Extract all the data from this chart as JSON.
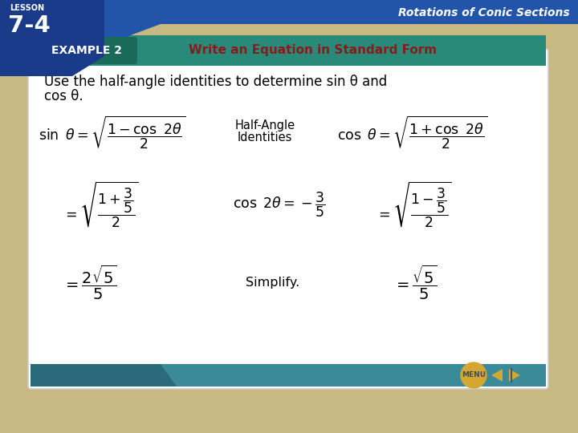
{
  "bg_color": "#c8b882",
  "white": "#ffffff",
  "black": "#000000",
  "lesson_bg": "#1a3a8a",
  "header_teal": "#2a8a7a",
  "example_box": "#1a6a5a",
  "title_color": "#8b1a1a",
  "footer_teal": "#3a8a9a",
  "menu_gold": "#d4a830",
  "rotations_text": "Rotations of Conic Sections",
  "example_label": "EXAMPLE 2",
  "title_text": "Write an Equation in Standard Form",
  "body_line1": "Use the half-angle identities to determine sin θ and",
  "body_line2": "cos θ.",
  "half_angle_line1": "Half-Angle",
  "half_angle_line2": "Identities",
  "simplify": "Simplify.",
  "math_sin_identity": "$\\sin\\ \\theta = \\sqrt{\\dfrac{1-\\cos\\ 2\\theta}{2}}$",
  "math_cos_identity": "$\\cos\\ \\theta = \\sqrt{\\dfrac{1+\\cos\\ 2\\theta}{2}}$",
  "math_sin_sub": "$= \\sqrt{\\dfrac{1+\\dfrac{3}{5}}{2}}$",
  "math_cos2t": "$\\cos\\ 2\\theta = -\\dfrac{3}{5}$",
  "math_cos_sub": "$= \\sqrt{\\dfrac{1-\\dfrac{3}{5}}{2}}$",
  "math_sin_final": "$= \\dfrac{2\\sqrt{5}}{5}$",
  "math_cos_final": "$= \\dfrac{\\sqrt{5}}{5}$"
}
